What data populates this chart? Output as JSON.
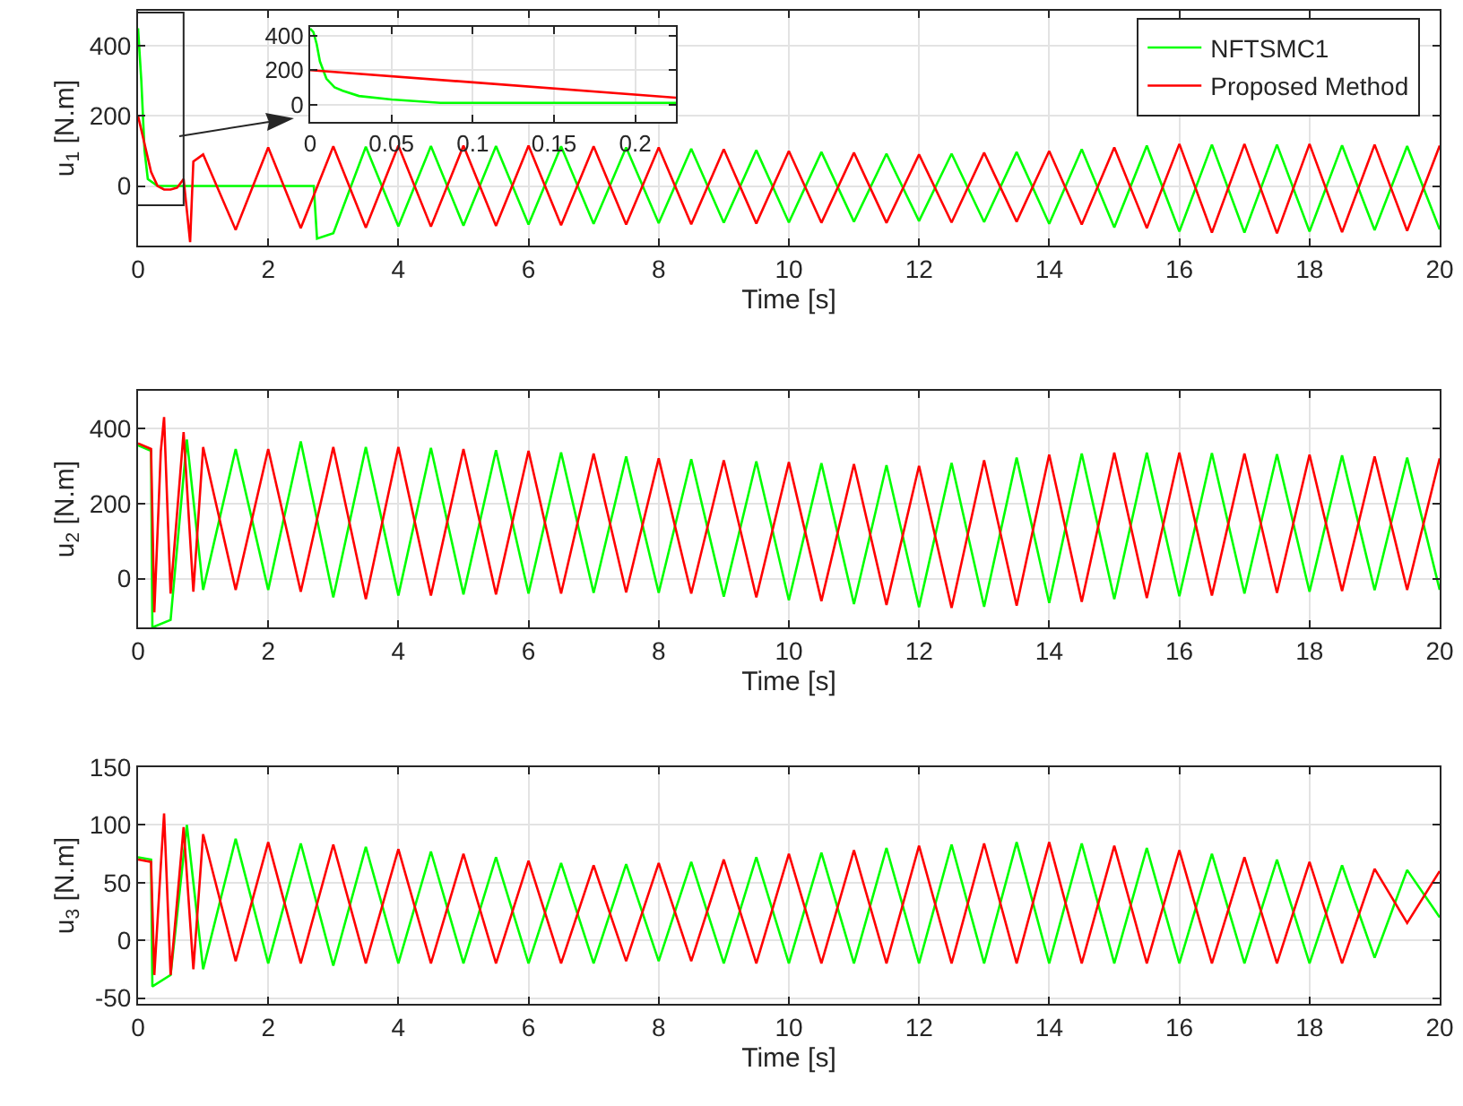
{
  "chart_data": [
    {
      "type": "line",
      "xlabel": "Time [s]",
      "ylabel": "u$_{1}$ [N.m]",
      "xlim": [
        0,
        20
      ],
      "xticks": [
        0,
        2,
        4,
        6,
        8,
        10,
        12,
        14,
        16,
        18,
        20
      ],
      "ylim": [
        -170,
        500
      ],
      "yticks": [
        0,
        200,
        400
      ],
      "grid": true,
      "legend": "top right",
      "series": [
        {
          "name": "NFTSMC1",
          "color": "#00ff00",
          "x": [
            0,
            0.05,
            0.1,
            0.15,
            0.3,
            1,
            2,
            2.7,
            2.75,
            3,
            3.5,
            4,
            4.5,
            5,
            5.5,
            6,
            6.5,
            7,
            7.5,
            8,
            8.5,
            9,
            9.5,
            10,
            10.5,
            11,
            11.5,
            12,
            12.5,
            13,
            13.5,
            14,
            14.5,
            15,
            15.5,
            16,
            16.5,
            17,
            17.5,
            18,
            18.5,
            19,
            19.5,
            20
          ],
          "values": [
            450,
            300,
            100,
            20,
            0,
            0,
            0,
            0,
            -150,
            -135,
            112,
            -115,
            114,
            -113,
            114,
            -110,
            113,
            -108,
            110,
            -106,
            106,
            -105,
            102,
            -104,
            97,
            -102,
            92,
            -100,
            92,
            -103,
            97,
            -108,
            105,
            -118,
            115,
            -130,
            118,
            -133,
            118,
            -130,
            116,
            -126,
            114,
            -124
          ]
        },
        {
          "name": "Proposed Method",
          "color": "#ff0000",
          "x": [
            0,
            0.1,
            0.2,
            0.3,
            0.4,
            0.5,
            0.6,
            0.7,
            0.8,
            0.85,
            1,
            1.5,
            2,
            2.5,
            3,
            3.5,
            4,
            4.5,
            5,
            5.5,
            6,
            6.5,
            7,
            7.5,
            8,
            8.5,
            9,
            9.5,
            10,
            10.5,
            11,
            11.5,
            12,
            12.5,
            13,
            13.5,
            14,
            14.5,
            15,
            15.5,
            16,
            16.5,
            17,
            17.5,
            18,
            18.5,
            19,
            19.5,
            20
          ],
          "values": [
            200,
            120,
            40,
            0,
            -10,
            -10,
            -5,
            20,
            -160,
            70,
            90,
            -125,
            110,
            -120,
            113,
            -119,
            115,
            -116,
            115,
            -114,
            115,
            -112,
            113,
            -110,
            110,
            -109,
            105,
            -107,
            100,
            -105,
            95,
            -105,
            90,
            -104,
            95,
            -102,
            100,
            -110,
            110,
            -120,
            120,
            -133,
            120,
            -135,
            120,
            -132,
            118,
            -128,
            115
          ]
        }
      ]
    },
    {
      "type": "line",
      "xlim": [
        0,
        0.225
      ],
      "xticks": [
        0,
        0.05,
        0.1,
        0.15,
        0.2
      ],
      "ylim": [
        -100,
        450
      ],
      "yticks": [
        0,
        200,
        400
      ],
      "grid": true,
      "series": [
        {
          "color": "#00ff00",
          "x": [
            0,
            0.002,
            0.004,
            0.006,
            0.01,
            0.015,
            0.02,
            0.03,
            0.05,
            0.08,
            0.12,
            0.225
          ],
          "values": [
            440,
            420,
            350,
            250,
            150,
            100,
            80,
            50,
            30,
            10,
            10,
            10
          ]
        },
        {
          "color": "#ff0000",
          "x": [
            0,
            0.225
          ],
          "values": [
            200,
            40
          ]
        }
      ]
    },
    {
      "type": "line",
      "xlabel": "Time [s]",
      "ylabel": "u$_{2}$ [N.m]",
      "xlim": [
        0,
        20
      ],
      "xticks": [
        0,
        2,
        4,
        6,
        8,
        10,
        12,
        14,
        16,
        18,
        20
      ],
      "ylim": [
        -130,
        500
      ],
      "yticks": [
        0,
        200,
        400
      ],
      "grid": true,
      "series": [
        {
          "color": "#00ff00",
          "x": [
            0,
            0.2,
            0.22,
            0.5,
            0.75,
            1,
            1.5,
            2,
            2.5,
            3,
            3.5,
            4,
            4.5,
            5,
            5.5,
            6,
            6.5,
            7,
            7.5,
            8,
            8.5,
            9,
            9.5,
            10,
            10.5,
            11,
            11.5,
            12,
            12.5,
            13,
            13.5,
            14,
            14.5,
            15,
            15.5,
            16,
            16.5,
            17,
            17.5,
            18,
            18.5,
            19,
            19.5,
            20
          ],
          "values": [
            355,
            340,
            -130,
            -110,
            370,
            -30,
            345,
            -30,
            365,
            -50,
            350,
            -45,
            348,
            -42,
            342,
            -40,
            336,
            -38,
            325,
            -38,
            318,
            -48,
            312,
            -58,
            307,
            -68,
            302,
            -76,
            308,
            -75,
            322,
            -65,
            333,
            -55,
            335,
            -47,
            334,
            -40,
            331,
            -35,
            328,
            -31,
            322,
            -30
          ]
        },
        {
          "color": "#ff0000",
          "x": [
            0,
            0.2,
            0.25,
            0.35,
            0.4,
            0.5,
            0.7,
            0.85,
            1,
            1.5,
            2,
            2.5,
            3,
            3.5,
            4,
            4.5,
            5,
            5.5,
            6,
            6.5,
            7,
            7.5,
            8,
            8.5,
            9,
            9.5,
            10,
            10.5,
            11,
            11.5,
            12,
            12.5,
            13,
            13.5,
            14,
            14.5,
            15,
            15.5,
            16,
            16.5,
            17,
            17.5,
            18,
            18.5,
            19,
            19.5,
            20
          ],
          "values": [
            360,
            345,
            -90,
            340,
            430,
            -40,
            390,
            -35,
            350,
            -30,
            345,
            -35,
            350,
            -55,
            350,
            -45,
            345,
            -42,
            340,
            -40,
            333,
            -37,
            320,
            -40,
            315,
            -50,
            310,
            -60,
            305,
            -70,
            300,
            -78,
            315,
            -72,
            330,
            -62,
            335,
            -52,
            335,
            -45,
            333,
            -38,
            330,
            -33,
            325,
            -30,
            320
          ]
        }
      ]
    },
    {
      "type": "line",
      "xlabel": "Time [s]",
      "ylabel": "u$_{3}$ [N.m]",
      "xlim": [
        0,
        20
      ],
      "xticks": [
        0,
        2,
        4,
        6,
        8,
        10,
        12,
        14,
        16,
        18,
        20
      ],
      "ylim": [
        -55,
        150
      ],
      "yticks": [
        -50,
        0,
        50,
        100,
        150
      ],
      "grid": true,
      "series": [
        {
          "color": "#00ff00",
          "x": [
            0,
            0.2,
            0.22,
            0.5,
            0.75,
            1,
            1.5,
            2,
            2.5,
            3,
            3.5,
            4,
            4.5,
            5,
            5.5,
            6,
            6.5,
            7,
            7.5,
            8,
            8.5,
            9,
            9.5,
            10,
            10.5,
            11,
            11.5,
            12,
            12.5,
            13,
            13.5,
            14,
            14.5,
            15,
            15.5,
            16,
            16.5,
            17,
            17.5,
            18,
            18.5,
            19,
            19.5,
            20
          ],
          "values": [
            72,
            70,
            -40,
            -30,
            100,
            -25,
            88,
            -20,
            84,
            -22,
            81,
            -20,
            77,
            -20,
            72,
            -20,
            67,
            -20,
            66,
            -18,
            68,
            -20,
            72,
            -20,
            76,
            -20,
            80,
            -20,
            83,
            -20,
            85,
            -20,
            84,
            -20,
            80,
            -20,
            75,
            -20,
            70,
            -20,
            65,
            -15,
            61,
            20
          ]
        },
        {
          "color": "#ff0000",
          "x": [
            0,
            0.2,
            0.25,
            0.35,
            0.4,
            0.5,
            0.7,
            0.85,
            1,
            1.5,
            2,
            2.5,
            3,
            3.5,
            4,
            4.5,
            5,
            5.5,
            6,
            6.5,
            7,
            7.5,
            8,
            8.5,
            9,
            9.5,
            10,
            10.5,
            11,
            11.5,
            12,
            12.5,
            13,
            13.5,
            14,
            14.5,
            15,
            15.5,
            16,
            16.5,
            17,
            17.5,
            18,
            18.5,
            19,
            19.5,
            20
          ],
          "values": [
            70,
            68,
            -30,
            65,
            110,
            -30,
            98,
            -25,
            92,
            -18,
            85,
            -20,
            83,
            -20,
            79,
            -20,
            75,
            -20,
            69,
            -20,
            65,
            -18,
            67,
            -18,
            70,
            -20,
            75,
            -20,
            78,
            -20,
            82,
            -20,
            84,
            -20,
            85,
            -20,
            82,
            -20,
            78,
            -20,
            72,
            -20,
            68,
            -20,
            62,
            15,
            60
          ]
        }
      ]
    }
  ]
}
